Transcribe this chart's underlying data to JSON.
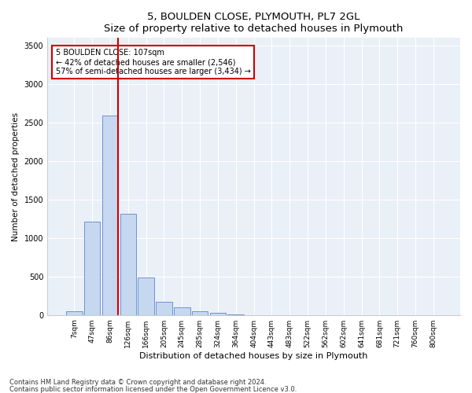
{
  "title": "5, BOULDEN CLOSE, PLYMOUTH, PL7 2GL",
  "subtitle": "Size of property relative to detached houses in Plymouth",
  "xlabel": "Distribution of detached houses by size in Plymouth",
  "ylabel": "Number of detached properties",
  "categories": [
    "7sqm",
    "47sqm",
    "86sqm",
    "126sqm",
    "166sqm",
    "205sqm",
    "245sqm",
    "285sqm",
    "324sqm",
    "364sqm",
    "404sqm",
    "443sqm",
    "483sqm",
    "522sqm",
    "562sqm",
    "602sqm",
    "641sqm",
    "681sqm",
    "721sqm",
    "760sqm",
    "800sqm"
  ],
  "bar_values": [
    50,
    1210,
    2590,
    1310,
    490,
    175,
    100,
    50,
    30,
    10,
    0,
    0,
    0,
    0,
    0,
    0,
    0,
    0,
    0,
    0,
    0
  ],
  "bar_color": "#c5d8f0",
  "bar_edge_color": "#4472c4",
  "vline_x_idx": 2,
  "vline_color": "#cc0000",
  "annotation_text": "5 BOULDEN CLOSE: 107sqm\n← 42% of detached houses are smaller (2,546)\n57% of semi-detached houses are larger (3,434) →",
  "annotation_box_color": "#ffffff",
  "annotation_box_edge": "#cc0000",
  "ylim": [
    0,
    3600
  ],
  "yticks": [
    0,
    500,
    1000,
    1500,
    2000,
    2500,
    3000,
    3500
  ],
  "footnote1": "Contains HM Land Registry data © Crown copyright and database right 2024.",
  "footnote2": "Contains public sector information licensed under the Open Government Licence v3.0.",
  "plot_bg_color": "#eaf0f8",
  "grid_color": "#ffffff",
  "title_fontsize": 9.5,
  "subtitle_fontsize": 8.5,
  "tick_fontsize": 6.5,
  "ylabel_fontsize": 7.5,
  "xlabel_fontsize": 8,
  "annotation_fontsize": 7,
  "footnote_fontsize": 6
}
